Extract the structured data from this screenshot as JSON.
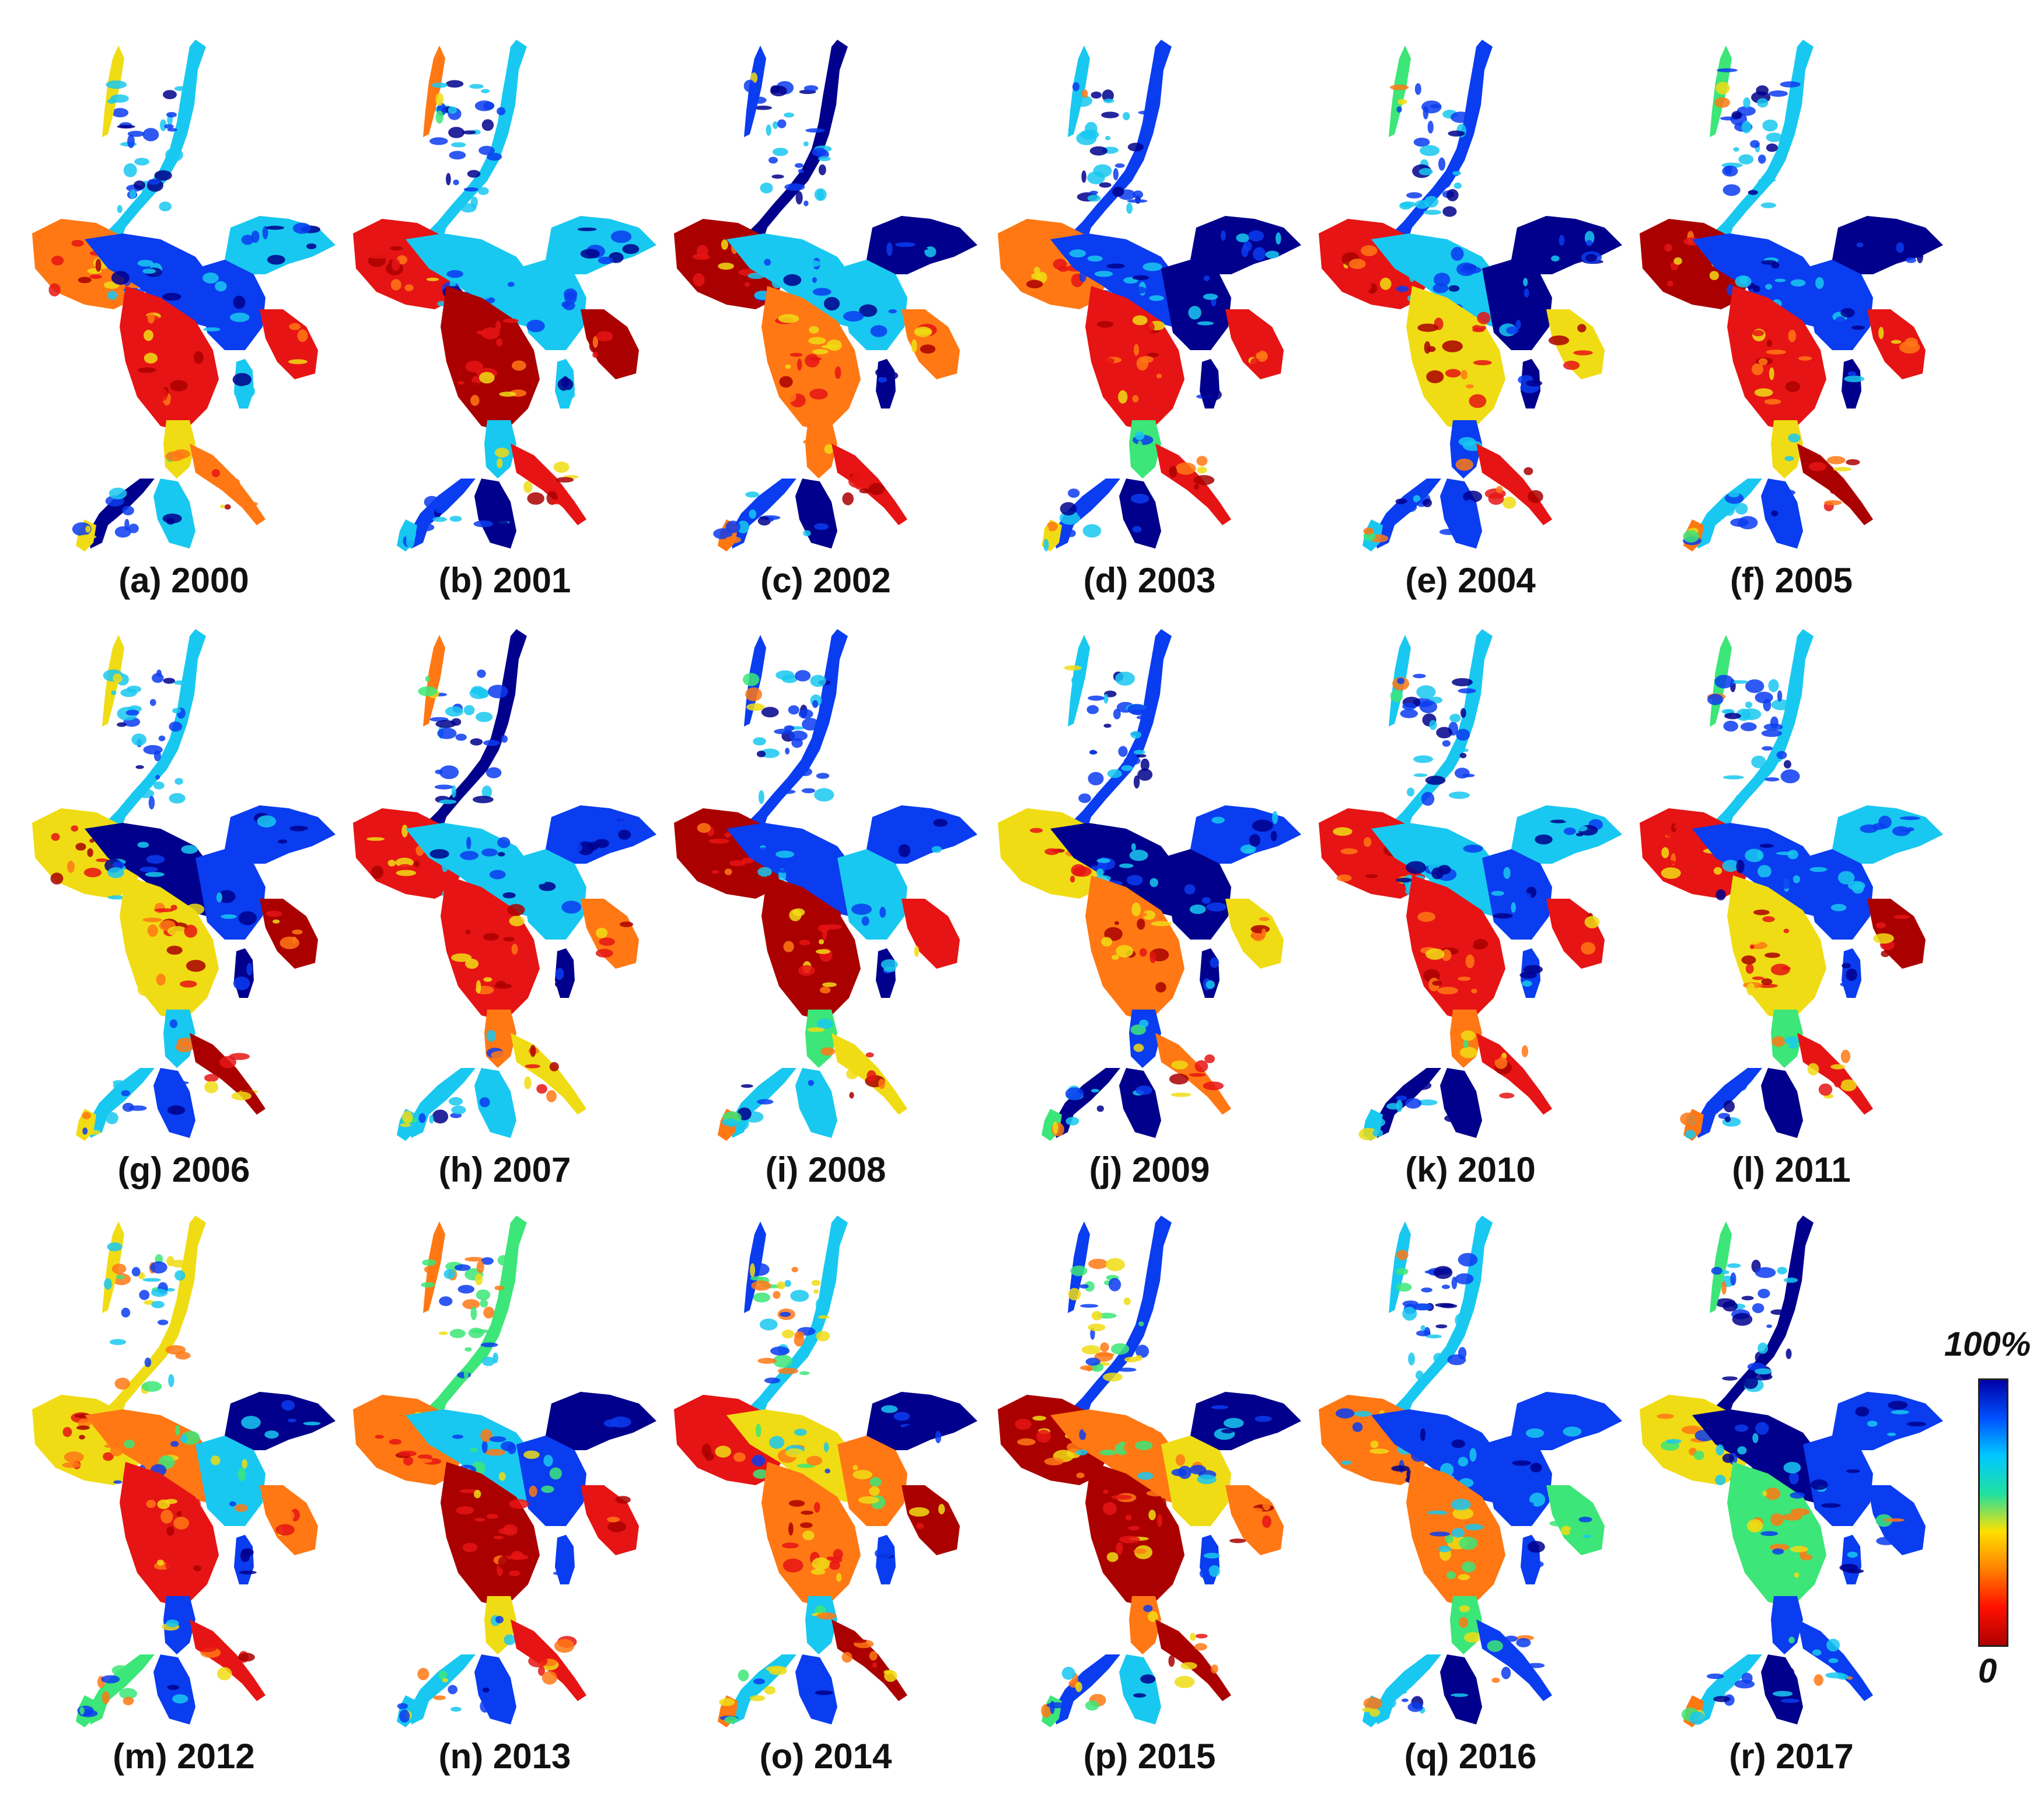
{
  "panels": [
    {
      "label": "(a) 2000",
      "year": 2000
    },
    {
      "label": "(b) 2001",
      "year": 2001
    },
    {
      "label": "(c) 2002",
      "year": 2002
    },
    {
      "label": "(d) 2003",
      "year": 2003
    },
    {
      "label": "(e) 2004",
      "year": 2004
    },
    {
      "label": "(f) 2005",
      "year": 2005
    },
    {
      "label": "(g) 2006",
      "year": 2006
    },
    {
      "label": "(h) 2007",
      "year": 2007
    },
    {
      "label": "(i) 2008",
      "year": 2008
    },
    {
      "label": "(j) 2009",
      "year": 2009
    },
    {
      "label": "(k) 2010",
      "year": 2010
    },
    {
      "label": "(l) 2011",
      "year": 2011
    },
    {
      "label": "(m) 2012",
      "year": 2012
    },
    {
      "label": "(n) 2013",
      "year": 2013
    },
    {
      "label": "(o) 2014",
      "year": 2014
    },
    {
      "label": "(p) 2015",
      "year": 2015
    },
    {
      "label": "(q) 2016",
      "year": 2016
    },
    {
      "label": "(r) 2017",
      "year": 2017
    }
  ],
  "legend": {
    "max_label": "100%",
    "min_label": "0",
    "colors": [
      "#0000a8",
      "#0050ff",
      "#00c8ff",
      "#20e0a0",
      "#ffe000",
      "#ff8000",
      "#ff1000",
      "#b00000"
    ]
  },
  "palette": {
    "deep_blue": "#00008c",
    "blue": "#0a3cf0",
    "cyan": "#19c8f0",
    "green": "#3ce678",
    "yellow": "#f0dc14",
    "orange": "#ff7814",
    "red": "#e61414",
    "dark_red": "#aa0000"
  }
}
